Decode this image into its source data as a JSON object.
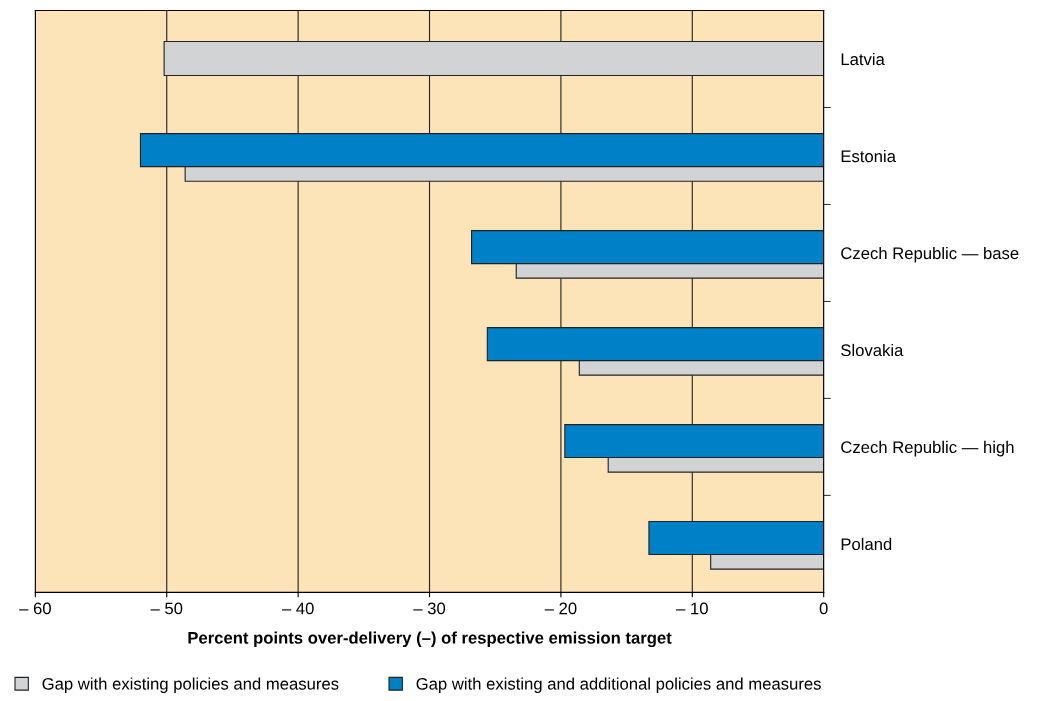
{
  "chart_data": {
    "type": "bar",
    "orientation": "horizontal",
    "categories": [
      "Latvia",
      "Estonia",
      "Czech Republic — base",
      "Slovakia",
      "Czech Republic — high",
      "Poland"
    ],
    "series": [
      {
        "name": "Gap with existing policies and measures",
        "color": "#d1d3d4",
        "values": [
          -50.2,
          -48.6,
          -23.4,
          -18.6,
          -16.4,
          -8.6
        ]
      },
      {
        "name": "Gap with existing and additional policies and measures",
        "color": "#0080c6",
        "values": [
          null,
          -52.0,
          -26.8,
          -25.6,
          -19.7,
          -13.3
        ]
      }
    ],
    "xlabel": "Percent points over-delivery (–) of respective emission target",
    "xlim": [
      -60,
      0
    ],
    "xticks": [
      {
        "value": -60,
        "label": "– 60"
      },
      {
        "value": -50,
        "label": "– 50"
      },
      {
        "value": -40,
        "label": "– 40"
      },
      {
        "value": -30,
        "label": "– 30"
      },
      {
        "value": -20,
        "label": "– 20"
      },
      {
        "value": -10,
        "label": "– 10"
      },
      0
    ],
    "grid": "x",
    "legend": "bottom"
  }
}
